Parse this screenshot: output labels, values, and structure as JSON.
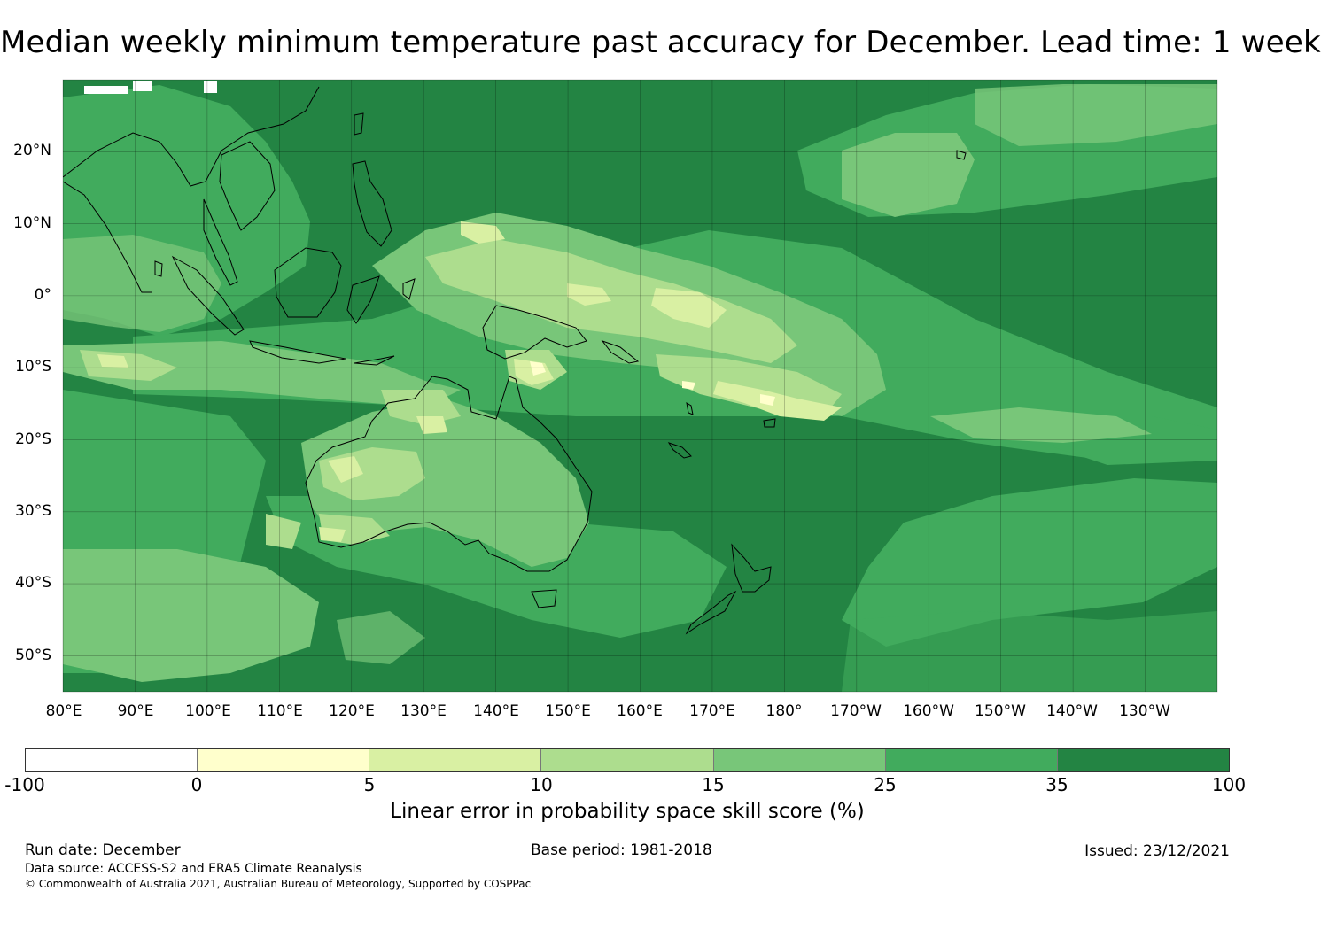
{
  "title": "Median weekly minimum temperature past accuracy for December. Lead time: 1 week",
  "map": {
    "projection": "PlateCarree",
    "lon_range_deg_east": [
      80,
      240
    ],
    "lat_range": [
      -55,
      30
    ],
    "lat_ticks": [
      "20°N",
      "10°N",
      "0°",
      "10°S",
      "20°S",
      "30°S",
      "40°S",
      "50°S"
    ],
    "lon_ticks": [
      "80°E",
      "90°E",
      "100°E",
      "110°E",
      "120°E",
      "130°E",
      "140°E",
      "150°E",
      "160°E",
      "170°E",
      "180°",
      "170°W",
      "160°W",
      "150°W",
      "140°W",
      "130°W"
    ],
    "gridlines": true,
    "coastlines": true
  },
  "colorbar": {
    "boundaries": [
      "-100",
      "0",
      "5",
      "10",
      "15",
      "25",
      "35",
      "100"
    ],
    "colors": [
      "#ffffff",
      "#ffffcc",
      "#d9f0a3",
      "#addd8e",
      "#78c679",
      "#41ab5d",
      "#238443"
    ],
    "label": "Linear error in probability space skill score (%)"
  },
  "footer": {
    "run_date": "Run date: December",
    "base_period": "Base period: 1981-2018",
    "issued": "Issued: 23/12/2021",
    "data_source": "Data source: ACCESS-S2 and ERA5 Climate Reanalysis",
    "copyright": "© Commonwealth of Australia 2021, Australian Bureau of Meteorology, Supported by COSPPac"
  }
}
